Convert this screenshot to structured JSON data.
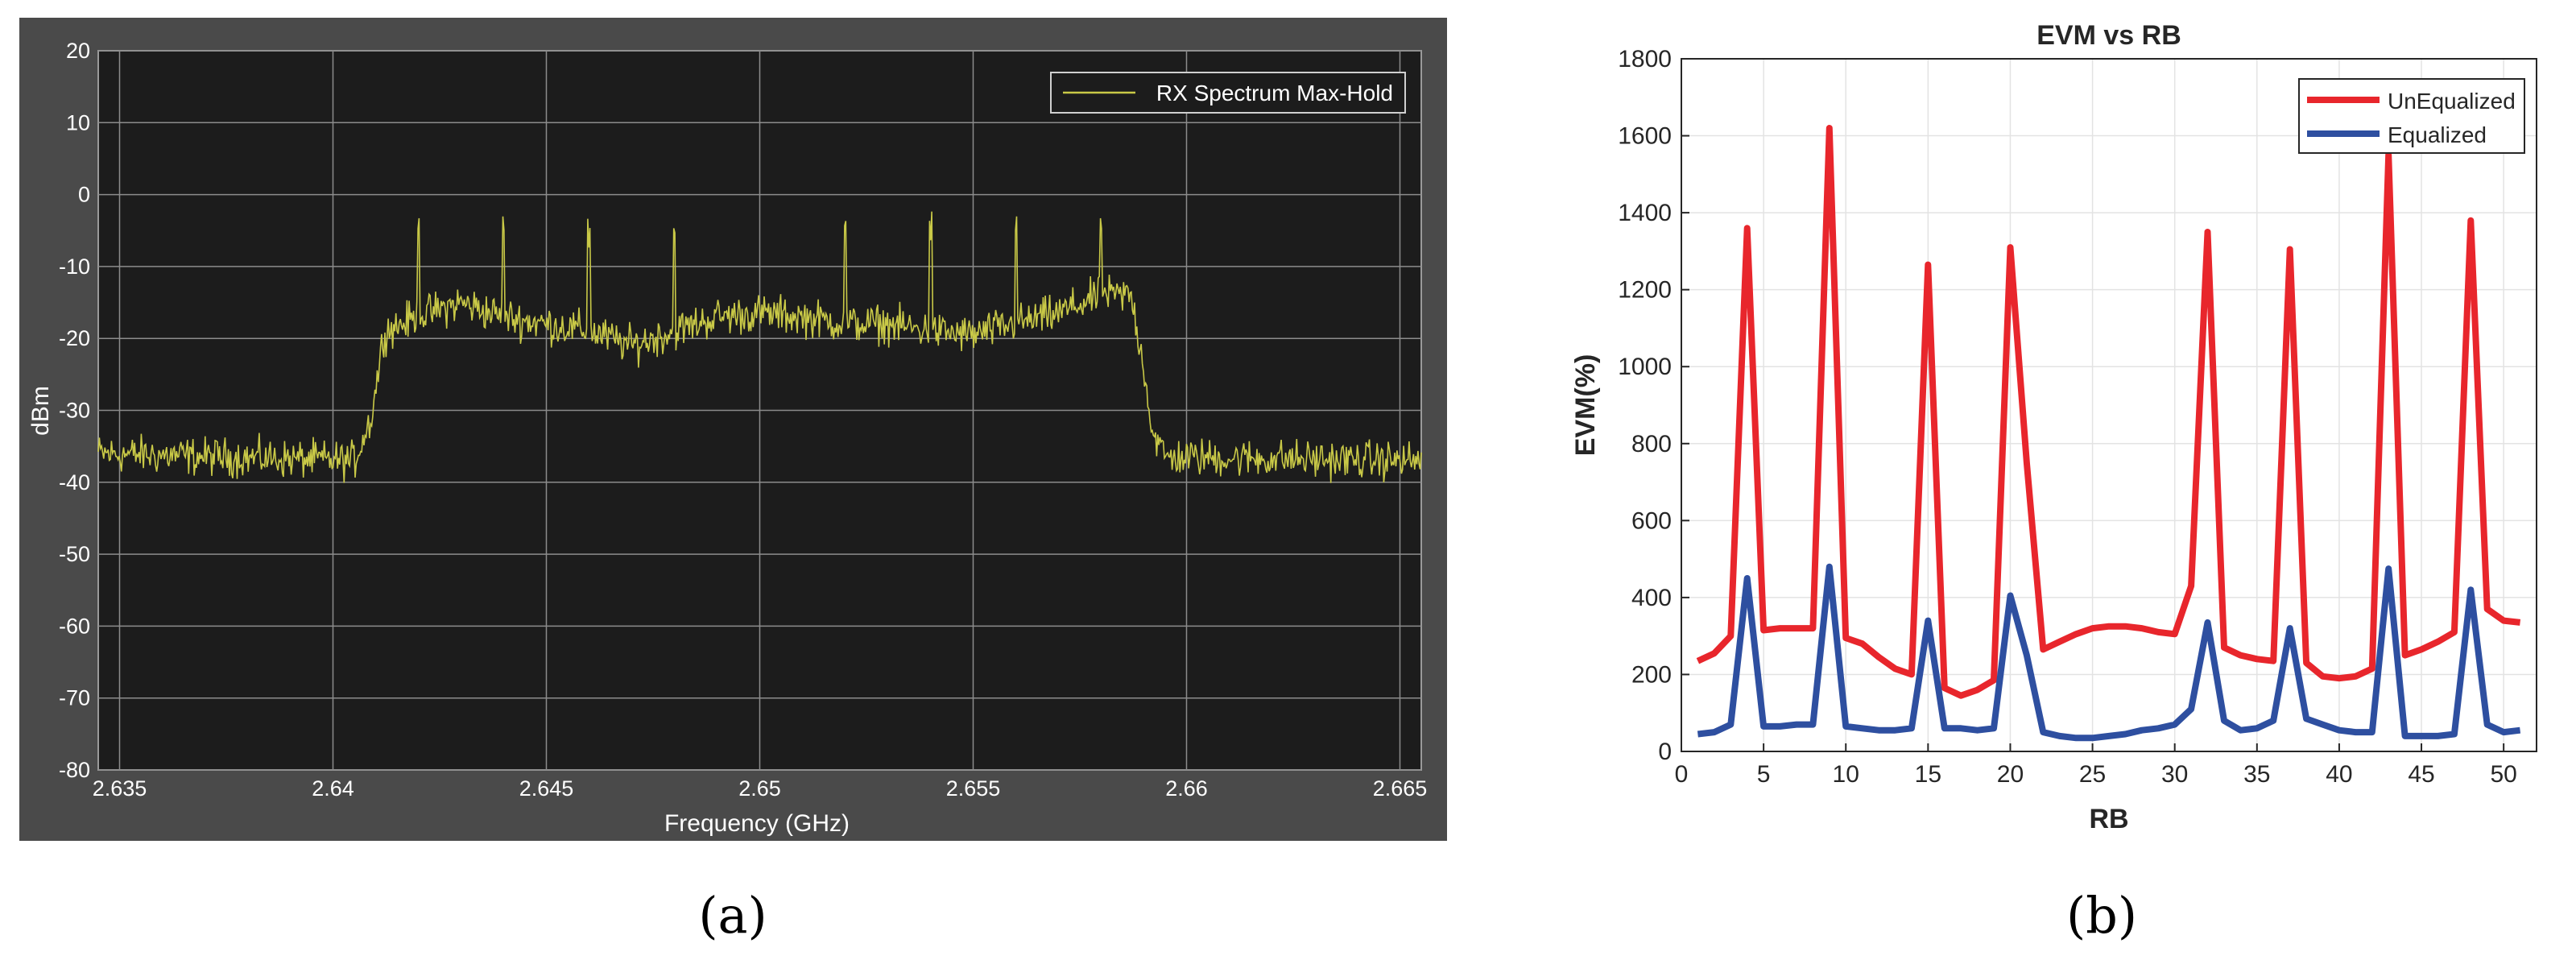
{
  "chart_data": [
    {
      "type": "line",
      "panel_label": "(a)",
      "title": "",
      "xlabel": "Frequency (GHz)",
      "ylabel": "dBm",
      "xlim": [
        2.6345,
        2.6655
      ],
      "ylim": [
        -80,
        20
      ],
      "x_ticks": [
        "2.635",
        "2.64",
        "2.645",
        "2.65",
        "2.655",
        "2.66",
        "2.665"
      ],
      "x_tick_values": [
        2.635,
        2.64,
        2.645,
        2.65,
        2.655,
        2.66,
        2.665
      ],
      "y_ticks": [
        20,
        10,
        0,
        -10,
        -20,
        -30,
        -40,
        -50,
        -60,
        -70,
        -80
      ],
      "grid": true,
      "legend_position": "top-right",
      "background": "#1c1c1c",
      "frame_color": "#4a4a4a",
      "series": [
        {
          "name": "RX Spectrum Max-Hold",
          "color": "#c9c947",
          "points": [
            [
              2.6345,
              -36
            ],
            [
              2.6405,
              -37
            ],
            [
              2.6409,
              -31
            ],
            [
              2.6412,
              -19
            ],
            [
              2.642,
              -17
            ],
            [
              2.643,
              -15
            ],
            [
              2.644,
              -17
            ],
            [
              2.645,
              -18
            ],
            [
              2.646,
              -19
            ],
            [
              2.647,
              -21
            ],
            [
              2.648,
              -19
            ],
            [
              2.649,
              -17
            ],
            [
              2.65,
              -16.5
            ],
            [
              2.651,
              -17
            ],
            [
              2.652,
              -18
            ],
            [
              2.653,
              -18
            ],
            [
              2.654,
              -19
            ],
            [
              2.655,
              -19.5
            ],
            [
              2.656,
              -18
            ],
            [
              2.657,
              -16.5
            ],
            [
              2.658,
              -14
            ],
            [
              2.6587,
              -14
            ],
            [
              2.659,
              -24
            ],
            [
              2.6592,
              -33
            ],
            [
              2.6595,
              -36.5
            ],
            [
              2.6655,
              -37
            ]
          ],
          "peaks": [
            [
              2.642,
              -6
            ],
            [
              2.644,
              -6
            ],
            [
              2.646,
              -8
            ],
            [
              2.648,
              -7
            ],
            [
              2.652,
              -6
            ],
            [
              2.654,
              -7
            ],
            [
              2.656,
              -6
            ],
            [
              2.658,
              -6
            ]
          ]
        }
      ]
    },
    {
      "type": "line",
      "panel_label": "(b)",
      "title": "EVM vs RB",
      "xlabel": "RB",
      "ylabel": "EVM(%)",
      "xlim": [
        0,
        52
      ],
      "ylim": [
        0,
        1800
      ],
      "x_ticks": [
        0,
        5,
        10,
        15,
        20,
        25,
        30,
        35,
        40,
        45,
        50
      ],
      "y_ticks": [
        0,
        200,
        400,
        600,
        800,
        1000,
        1200,
        1400,
        1600,
        1800
      ],
      "grid": true,
      "legend_position": "top-right",
      "series": [
        {
          "name": "UnEqualized",
          "color": "#e8262c",
          "x": [
            1,
            2,
            3,
            4,
            5,
            6,
            7,
            8,
            9,
            10,
            11,
            12,
            13,
            14,
            15,
            16,
            17,
            18,
            19,
            20,
            21,
            22,
            23,
            24,
            25,
            26,
            27,
            28,
            29,
            30,
            31,
            32,
            33,
            34,
            35,
            36,
            37,
            38,
            39,
            40,
            41,
            42,
            43,
            44,
            45,
            46,
            47,
            48,
            49,
            50,
            51
          ],
          "values": [
            235,
            255,
            300,
            1360,
            315,
            320,
            320,
            320,
            1620,
            295,
            280,
            245,
            215,
            200,
            1265,
            165,
            145,
            160,
            185,
            1310,
            750,
            265,
            285,
            305,
            320,
            325,
            325,
            320,
            310,
            305,
            430,
            1350,
            270,
            250,
            240,
            235,
            1305,
            230,
            195,
            190,
            195,
            215,
            1550,
            250,
            265,
            285,
            310,
            1380,
            370,
            340,
            335
          ]
        },
        {
          "name": "Equalized",
          "color": "#2e4fa0",
          "x": [
            1,
            2,
            3,
            4,
            5,
            6,
            7,
            8,
            9,
            10,
            11,
            12,
            13,
            14,
            15,
            16,
            17,
            18,
            19,
            20,
            21,
            22,
            23,
            24,
            25,
            26,
            27,
            28,
            29,
            30,
            31,
            32,
            33,
            34,
            35,
            36,
            37,
            38,
            39,
            40,
            41,
            42,
            43,
            44,
            45,
            46,
            47,
            48,
            49,
            50,
            51
          ],
          "values": [
            45,
            50,
            70,
            450,
            65,
            65,
            70,
            70,
            480,
            65,
            60,
            55,
            55,
            60,
            340,
            60,
            60,
            55,
            60,
            405,
            250,
            50,
            40,
            35,
            35,
            40,
            45,
            55,
            60,
            70,
            110,
            335,
            80,
            55,
            60,
            80,
            320,
            85,
            70,
            55,
            50,
            50,
            475,
            40,
            40,
            40,
            45,
            420,
            70,
            50,
            55
          ]
        }
      ]
    }
  ]
}
